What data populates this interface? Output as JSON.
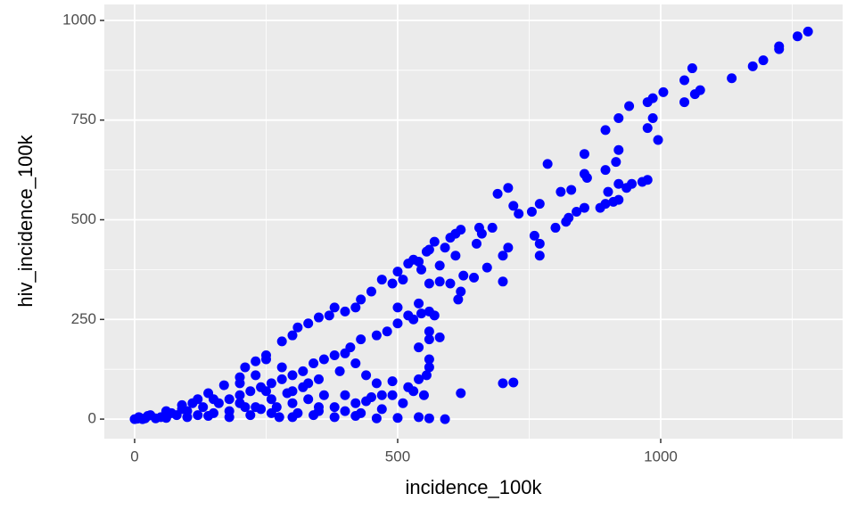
{
  "chart_data": {
    "type": "scatter",
    "x_label": "incidence_100k",
    "y_label": "hiv_incidence_100k",
    "xlim": [
      -57.6,
      1345.8
    ],
    "ylim": [
      -49,
      1040
    ],
    "xticks": [
      0,
      500,
      1000
    ],
    "yticks": [
      0,
      250,
      500,
      750,
      1000
    ],
    "xminor": [
      250,
      750,
      1250
    ],
    "yminor": [
      125,
      375,
      625,
      875
    ],
    "grid": true,
    "color": "#0000ff",
    "x": [
      1280,
      1260,
      1225,
      1225,
      1195,
      1175,
      1135,
      1075,
      1065,
      1060,
      1045,
      1045,
      1005,
      985,
      975,
      985,
      975,
      995,
      940,
      920,
      895,
      920,
      915,
      855,
      895,
      855,
      860,
      785,
      810,
      830,
      935,
      945,
      965,
      975,
      920,
      910,
      895,
      885,
      920,
      900,
      855,
      840,
      825,
      800,
      820,
      690,
      710,
      720,
      730,
      755,
      770,
      760,
      770,
      770,
      710,
      700,
      700,
      680,
      655,
      660,
      650,
      670,
      620,
      610,
      600,
      590,
      570,
      560,
      555,
      540,
      530,
      520,
      545,
      580,
      610,
      625,
      645,
      620,
      615,
      600,
      580,
      560,
      510,
      500,
      490,
      470,
      450,
      430,
      420,
      400,
      380,
      370,
      350,
      330,
      310,
      300,
      280,
      250,
      230,
      210,
      200,
      170,
      140,
      120,
      90,
      60,
      30,
      10,
      580,
      560,
      570,
      560,
      545,
      530,
      520,
      500,
      480,
      460,
      430,
      410,
      400,
      380,
      360,
      340,
      320,
      300,
      280,
      260,
      240,
      220,
      200,
      180,
      160,
      560,
      555,
      550,
      530,
      490,
      470,
      450,
      420,
      400,
      380,
      350,
      330,
      300,
      270,
      240,
      210,
      180,
      150,
      120,
      100,
      80,
      50,
      20,
      0,
      5,
      15,
      40,
      560,
      540,
      560,
      540,
      500,
      700,
      720,
      620,
      590,
      560,
      540,
      500,
      460,
      420,
      380,
      340,
      300,
      260,
      230,
      200,
      260,
      300,
      350,
      390,
      420,
      440,
      460,
      490,
      520,
      470,
      430,
      360,
      320,
      280,
      250,
      230,
      200,
      150,
      130,
      110,
      90,
      70,
      250,
      290,
      330,
      400,
      440,
      510,
      540,
      350,
      310,
      275,
      220,
      180,
      140,
      100,
      60,
      25,
      8
    ],
    "y": [
      972,
      960,
      935,
      928,
      900,
      885,
      855,
      825,
      815,
      880,
      850,
      795,
      820,
      805,
      795,
      755,
      730,
      700,
      785,
      755,
      725,
      675,
      645,
      665,
      625,
      615,
      605,
      640,
      570,
      575,
      580,
      590,
      595,
      600,
      550,
      545,
      540,
      530,
      590,
      570,
      530,
      520,
      505,
      480,
      495,
      565,
      580,
      535,
      515,
      520,
      540,
      460,
      440,
      410,
      430,
      410,
      345,
      480,
      480,
      465,
      440,
      380,
      475,
      465,
      455,
      430,
      445,
      425,
      420,
      395,
      400,
      390,
      375,
      385,
      410,
      360,
      355,
      320,
      300,
      340,
      345,
      340,
      350,
      370,
      340,
      350,
      320,
      300,
      280,
      270,
      280,
      260,
      255,
      240,
      230,
      210,
      195,
      160,
      145,
      130,
      105,
      85,
      65,
      50,
      35,
      20,
      10,
      3,
      205,
      200,
      260,
      270,
      265,
      250,
      260,
      240,
      220,
      210,
      200,
      180,
      165,
      160,
      150,
      140,
      120,
      110,
      100,
      90,
      80,
      70,
      60,
      50,
      40,
      130,
      110,
      60,
      70,
      60,
      60,
      55,
      40,
      20,
      30,
      30,
      50,
      40,
      30,
      25,
      30,
      20,
      15,
      10,
      20,
      10,
      5,
      2,
      0,
      1,
      0,
      2,
      150,
      180,
      220,
      290,
      280,
      90,
      92,
      65,
      0,
      2,
      5,
      3,
      2,
      8,
      5,
      10,
      5,
      15,
      30,
      40,
      50,
      70,
      100,
      120,
      140,
      110,
      90,
      95,
      80,
      25,
      15,
      60,
      80,
      130,
      150,
      110,
      90,
      50,
      30,
      40,
      25,
      15,
      70,
      65,
      90,
      60,
      45,
      40,
      100,
      20,
      15,
      5,
      10,
      5,
      8,
      5,
      3,
      8,
      5
    ]
  }
}
